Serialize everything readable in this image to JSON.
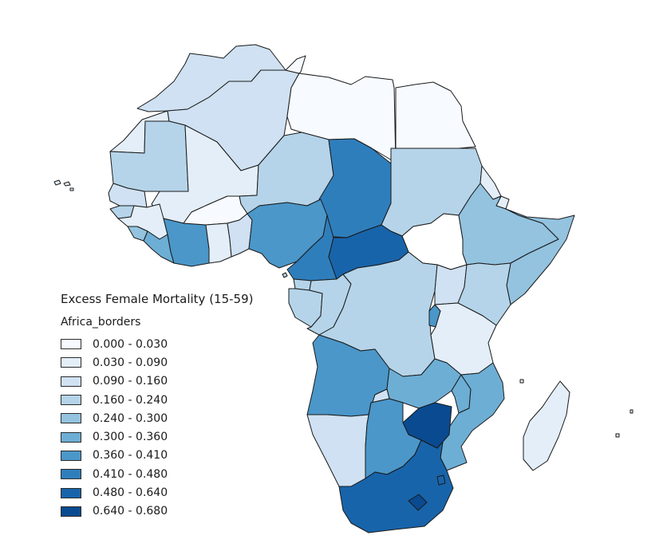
{
  "legend": {
    "title": "Excess Female Mortality (15-59)",
    "layer_name": "Africa_borders",
    "classes": [
      {
        "label": "0.000 - 0.030",
        "color": "#f7fbff"
      },
      {
        "label": "0.030 - 0.090",
        "color": "#e3eef9"
      },
      {
        "label": "0.090 - 0.160",
        "color": "#cfe1f2"
      },
      {
        "label": "0.160 - 0.240",
        "color": "#b5d4e9"
      },
      {
        "label": "0.240 - 0.300",
        "color": "#93c3df"
      },
      {
        "label": "0.300 - 0.360",
        "color": "#6daed5"
      },
      {
        "label": "0.360 - 0.410",
        "color": "#4b97c9"
      },
      {
        "label": "0.410 - 0.480",
        "color": "#2f7ebc"
      },
      {
        "label": "0.480 - 0.640",
        "color": "#1864aa"
      },
      {
        "label": "0.640 - 0.680",
        "color": "#0a4a90"
      }
    ]
  },
  "regions": [
    {
      "id": "morocco",
      "class": 2
    },
    {
      "id": "western-sahara",
      "class": 1
    },
    {
      "id": "algeria",
      "class": 2
    },
    {
      "id": "tunisia",
      "class": 0
    },
    {
      "id": "libya",
      "class": 0
    },
    {
      "id": "egypt",
      "class": 0
    },
    {
      "id": "mauritania",
      "class": 3
    },
    {
      "id": "mali",
      "class": 1
    },
    {
      "id": "niger",
      "class": 3
    },
    {
      "id": "chad",
      "class": 7
    },
    {
      "id": "sudan",
      "class": 3
    },
    {
      "id": "south-sudan",
      "class": -1
    },
    {
      "id": "eritrea",
      "class": 1
    },
    {
      "id": "djibouti",
      "class": 1
    },
    {
      "id": "ethiopia",
      "class": 4
    },
    {
      "id": "somalia",
      "class": 4
    },
    {
      "id": "senegal-gambia",
      "class": 2
    },
    {
      "id": "guinea-bissau",
      "class": 3
    },
    {
      "id": "guinea",
      "class": 1
    },
    {
      "id": "sierra-leone",
      "class": 4
    },
    {
      "id": "liberia",
      "class": 5
    },
    {
      "id": "cote-divoire",
      "class": 6
    },
    {
      "id": "burkina-faso",
      "class": 0
    },
    {
      "id": "ghana",
      "class": 1
    },
    {
      "id": "togo-benin",
      "class": 2
    },
    {
      "id": "nigeria",
      "class": 6
    },
    {
      "id": "cameroon",
      "class": 7
    },
    {
      "id": "car",
      "class": 8
    },
    {
      "id": "equatorial-guinea",
      "class": 3
    },
    {
      "id": "gabon",
      "class": 3
    },
    {
      "id": "congo",
      "class": 3
    },
    {
      "id": "drc",
      "class": 3
    },
    {
      "id": "uganda",
      "class": 2
    },
    {
      "id": "kenya",
      "class": 3
    },
    {
      "id": "rwanda-burundi",
      "class": 6
    },
    {
      "id": "tanzania",
      "class": 1
    },
    {
      "id": "angola",
      "class": 6
    },
    {
      "id": "zambia",
      "class": 5
    },
    {
      "id": "malawi",
      "class": 5
    },
    {
      "id": "mozambique",
      "class": 5
    },
    {
      "id": "zimbabwe",
      "class": 9
    },
    {
      "id": "namibia",
      "class": 2
    },
    {
      "id": "botswana",
      "class": 6
    },
    {
      "id": "south-africa",
      "class": 8
    },
    {
      "id": "lesotho",
      "class": 9
    },
    {
      "id": "eswatini",
      "class": 8
    },
    {
      "id": "madagascar",
      "class": 1
    }
  ]
}
